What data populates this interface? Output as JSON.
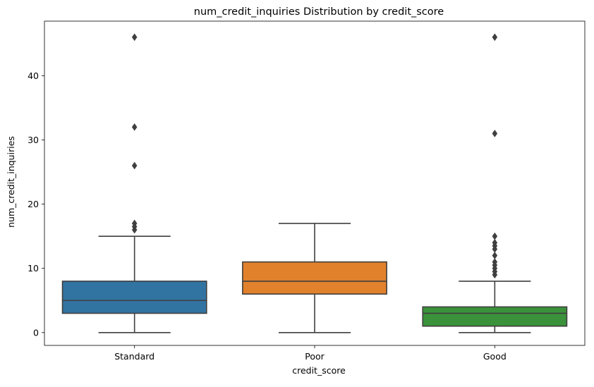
{
  "chart_data": {
    "type": "box",
    "title": "num_credit_inquiries Distribution by credit_score",
    "xlabel": "credit_score",
    "ylabel": "num_credit_inquiries",
    "categories": [
      "Standard",
      "Poor",
      "Good"
    ],
    "ylim": [
      -2,
      48.5
    ],
    "yticks": [
      0,
      10,
      20,
      30,
      40
    ],
    "grid": false,
    "legend": "none",
    "boxes": [
      {
        "category": "Standard",
        "color": "#3274a1",
        "whisker_low": 0,
        "q1": 3,
        "median": 5,
        "q3": 8,
        "whisker_high": 15,
        "outliers": [
          16,
          16.5,
          17,
          26,
          32,
          46
        ]
      },
      {
        "category": "Poor",
        "color": "#e1812c",
        "whisker_low": 0,
        "q1": 6,
        "median": 8,
        "q3": 11,
        "whisker_high": 17,
        "outliers": []
      },
      {
        "category": "Good",
        "color": "#3a923a",
        "whisker_low": 0,
        "q1": 1,
        "median": 3,
        "q3": 4,
        "whisker_high": 8,
        "outliers": [
          9,
          9.5,
          10,
          10.5,
          11,
          12,
          13,
          13.5,
          14,
          15,
          31,
          46
        ]
      }
    ],
    "line_color": "#3f3f3f"
  }
}
